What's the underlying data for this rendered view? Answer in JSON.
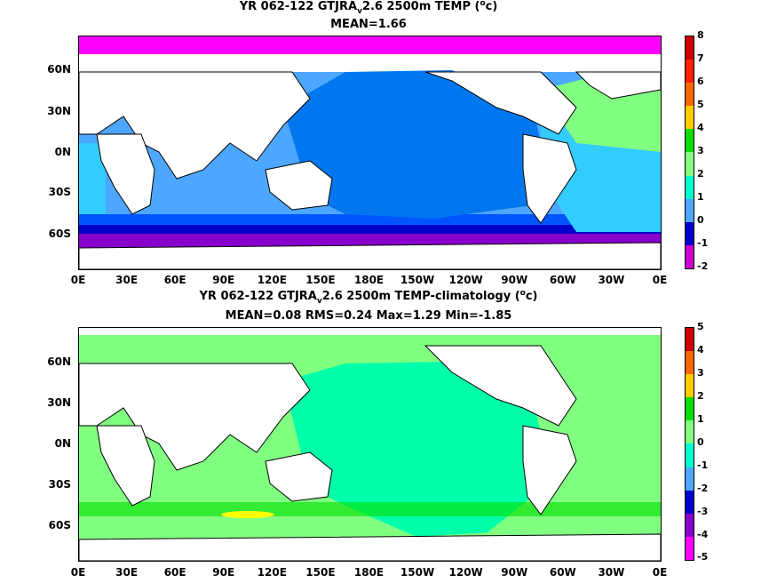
{
  "panel1": {
    "title_prefix": "YR 062-122 GTJRA",
    "title_sub": "v",
    "title_suffix": "2.6 2500m TEMP (",
    "title_sup": "o",
    "title_unit": "c)",
    "stats": "MEAN=1.66",
    "colorbar_labels": [
      "8",
      "7",
      "6",
      "5",
      "4",
      "3",
      "2",
      "1",
      "0",
      "-1",
      "-2"
    ]
  },
  "panel2": {
    "title_prefix": "YR 062-122 GTJRA",
    "title_sub": "v",
    "title_suffix": "2.6 2500m TEMP-climatology (",
    "title_sup": "o",
    "title_unit": "c)",
    "stats": "MEAN=0.08   RMS=0.24   Max=1.29   Min=-1.85",
    "colorbar_labels": [
      "5",
      "4",
      "3",
      "2",
      "1",
      "0",
      "-1",
      "-2",
      "-3",
      "-4",
      "-5"
    ]
  },
  "lat_labels": [
    "60N",
    "30N",
    "0N",
    "30S",
    "60S"
  ],
  "lon_labels": [
    "0E",
    "30E",
    "60E",
    "90E",
    "120E",
    "150E",
    "180E",
    "150W",
    "120W",
    "90W",
    "60W",
    "30W",
    "0E"
  ],
  "colorbar_colors": [
    "#ff00ff",
    "#cc00cc",
    "#8800cc",
    "#0000cc",
    "#0055ff",
    "#4da6ff",
    "#33ccff",
    "#00ffcc",
    "#80ff80",
    "#00dd00",
    "#ffff00",
    "#ffcc00",
    "#ff9900",
    "#ff6600",
    "#ff2200",
    "#cc0000",
    "#888888",
    "#bbbbbb"
  ]
}
